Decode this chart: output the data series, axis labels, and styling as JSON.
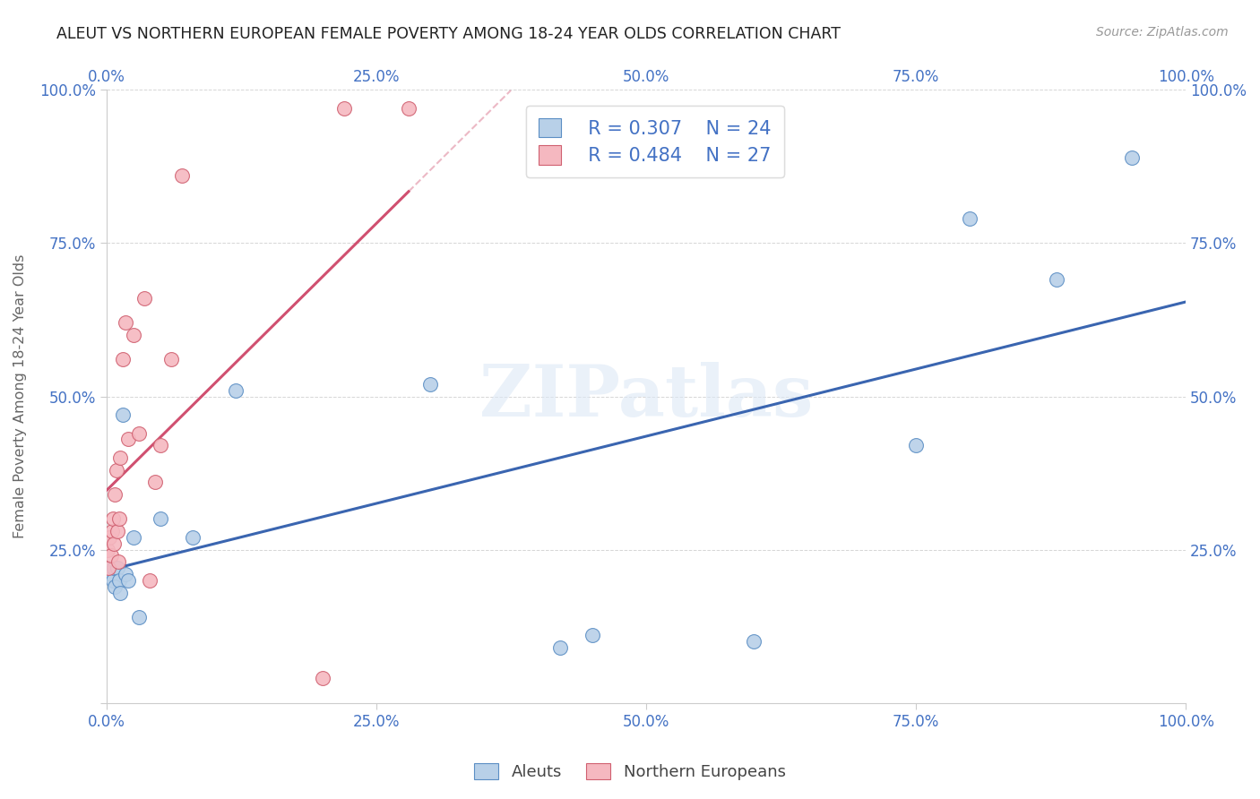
{
  "title": "ALEUT VS NORTHERN EUROPEAN FEMALE POVERTY AMONG 18-24 YEAR OLDS CORRELATION CHART",
  "source": "Source: ZipAtlas.com",
  "ylabel": "Female Poverty Among 18-24 Year Olds",
  "xlim": [
    0,
    1.0
  ],
  "ylim": [
    0,
    1.0
  ],
  "xticks": [
    0.0,
    0.25,
    0.5,
    0.75,
    1.0
  ],
  "yticks": [
    0.0,
    0.25,
    0.5,
    0.75,
    1.0
  ],
  "xtick_labels": [
    "0.0%",
    "25.0%",
    "50.0%",
    "75.0%",
    "100.0%"
  ],
  "ytick_labels": [
    "",
    "25.0%",
    "50.0%",
    "75.0%",
    "100.0%"
  ],
  "watermark": "ZIPatlas",
  "legend_R_aleut": "R = 0.307",
  "legend_N_aleut": "N = 24",
  "legend_R_northern": "R = 0.484",
  "legend_N_northern": "N = 27",
  "color_aleut_face": "#b8d0e8",
  "color_aleut_edge": "#5b8ec4",
  "color_northern_face": "#f5b8c0",
  "color_northern_edge": "#d06070",
  "color_line_aleut": "#3a65b0",
  "color_line_northern": "#d05070",
  "color_text_blue": "#4472c4",
  "color_grid": "#cccccc",
  "figsize": [
    14.06,
    8.92
  ],
  "dpi": 100,
  "aleut_x": [
    0.002,
    0.004,
    0.006,
    0.007,
    0.008,
    0.01,
    0.012,
    0.013,
    0.015,
    0.018,
    0.02,
    0.025,
    0.03,
    0.05,
    0.08,
    0.12,
    0.3,
    0.42,
    0.45,
    0.6,
    0.75,
    0.8,
    0.88,
    0.95
  ],
  "aleut_y": [
    0.22,
    0.21,
    0.2,
    0.22,
    0.19,
    0.22,
    0.2,
    0.18,
    0.47,
    0.21,
    0.2,
    0.27,
    0.14,
    0.3,
    0.27,
    0.51,
    0.52,
    0.09,
    0.11,
    0.1,
    0.42,
    0.79,
    0.69,
    0.89
  ],
  "northern_x": [
    0.001,
    0.002,
    0.003,
    0.004,
    0.005,
    0.006,
    0.007,
    0.008,
    0.009,
    0.01,
    0.011,
    0.012,
    0.013,
    0.015,
    0.018,
    0.02,
    0.025,
    0.03,
    0.035,
    0.04,
    0.045,
    0.05,
    0.06,
    0.07,
    0.2,
    0.22,
    0.28
  ],
  "northern_y": [
    0.25,
    0.22,
    0.27,
    0.24,
    0.28,
    0.3,
    0.26,
    0.34,
    0.38,
    0.28,
    0.23,
    0.3,
    0.4,
    0.56,
    0.62,
    0.43,
    0.6,
    0.44,
    0.66,
    0.2,
    0.36,
    0.42,
    0.56,
    0.86,
    0.04,
    0.97,
    0.97
  ]
}
